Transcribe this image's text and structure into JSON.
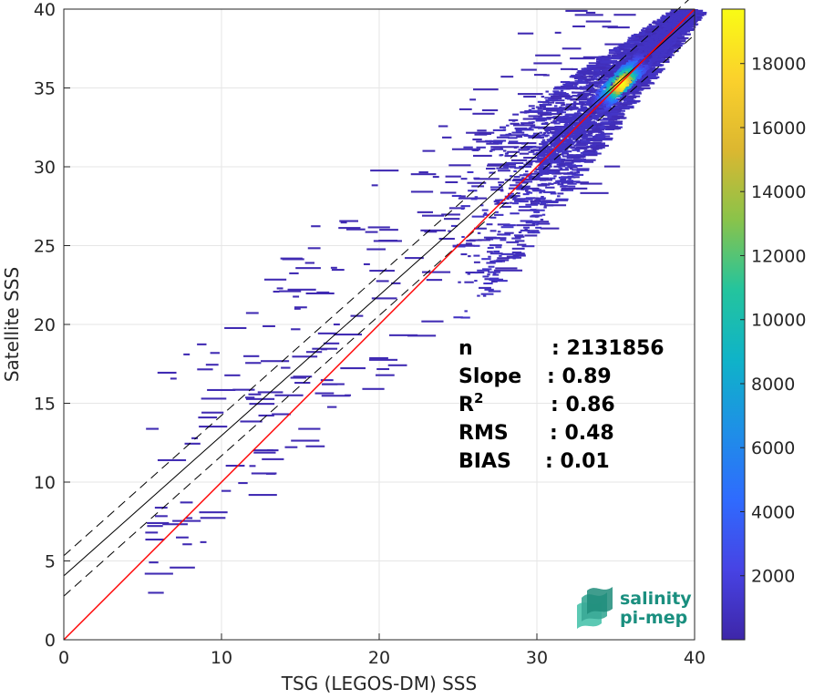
{
  "chart_data": {
    "type": "heatmap",
    "title": "",
    "xlabel": "TSG (LEGOS-DM) SSS",
    "ylabel": "Satellite SSS",
    "xlim": [
      0,
      40
    ],
    "ylim": [
      0,
      40
    ],
    "x_ticks": [
      "0",
      "10",
      "20",
      "30",
      "40"
    ],
    "y_ticks": [
      "0",
      "5",
      "10",
      "15",
      "20",
      "25",
      "30",
      "35",
      "40"
    ],
    "grid": true,
    "colorbar": {
      "range": [
        0,
        19700
      ],
      "ticks": [
        "2000",
        "4000",
        "6000",
        "8000",
        "10000",
        "12000",
        "14000",
        "16000",
        "18000"
      ],
      "colormap": [
        "#3e26a8",
        "#4743e4",
        "#2f6bfe",
        "#1e90e6",
        "#0fb3c8",
        "#24c49d",
        "#8ac34a",
        "#dcb730",
        "#fbd12c",
        "#f9fb15"
      ]
    },
    "lines": {
      "identity": {
        "slope": 1.0,
        "intercept": 0,
        "color": "#ff0000"
      },
      "regression": {
        "slope": 0.89,
        "intercept": 4.05,
        "color": "#000000"
      },
      "regression_upper": {
        "slope": 0.89,
        "intercept": 5.33
      },
      "regression_lower": {
        "slope": 0.89,
        "intercept": 2.77
      }
    },
    "density_core": {
      "x": 35.3,
      "y": 35.3,
      "peak_count": 19700
    },
    "stats": [
      {
        "label": "n",
        "value": ": 2131856"
      },
      {
        "label": "Slope",
        "value": ": 0.89"
      },
      {
        "label": "R",
        "sup": "2",
        "value": ": 0.86"
      },
      {
        "label": "RMS",
        "value": ": 0.48"
      },
      {
        "label": "BIAS",
        "value": ": 0.01"
      }
    ]
  },
  "logo": {
    "line1": "salinity",
    "line2": "pi-mep"
  }
}
